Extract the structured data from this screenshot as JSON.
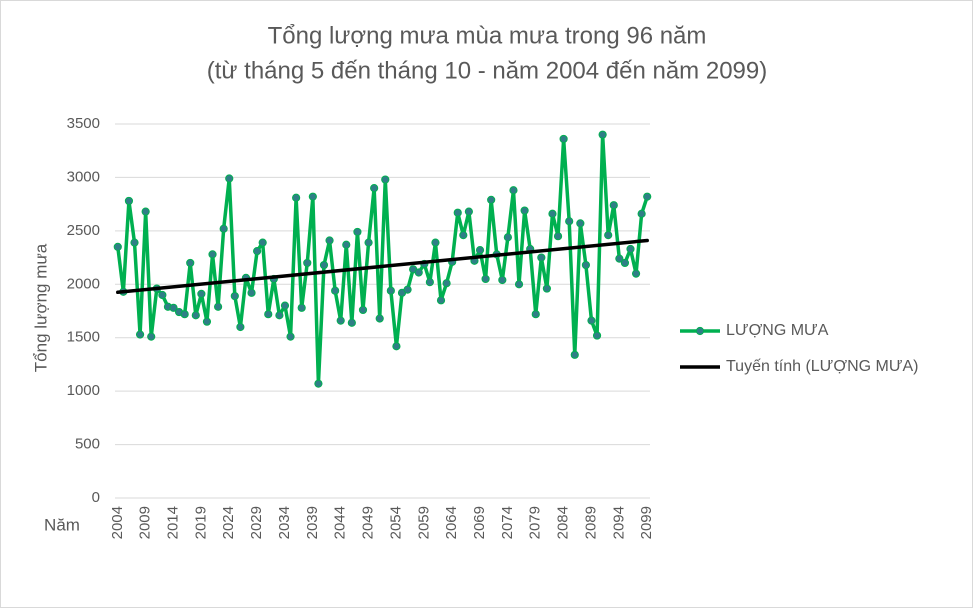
{
  "chart_data": {
    "type": "line",
    "title": "Tổng lượng mưa mùa mưa trong 96 năm",
    "subtitle": "(từ tháng 5 đến tháng 10 - năm 2004 đến năm 2099)",
    "y_label": "Tổng lượng mưa",
    "x_label": "Năm",
    "categories": [
      "2004",
      null,
      null,
      null,
      null,
      "2009",
      null,
      null,
      null,
      null,
      "2014",
      null,
      null,
      null,
      null,
      "2019",
      null,
      null,
      null,
      null,
      "2024",
      null,
      null,
      null,
      null,
      "2029",
      null,
      null,
      null,
      null,
      "2034",
      null,
      null,
      null,
      null,
      "2039",
      null,
      null,
      null,
      null,
      "2044",
      null,
      null,
      null,
      null,
      "2049",
      null,
      null,
      null,
      null,
      "2054",
      null,
      null,
      null,
      null,
      "2059",
      null,
      null,
      null,
      null,
      "2064",
      null,
      null,
      null,
      null,
      "2069",
      null,
      null,
      null,
      null,
      "2074",
      null,
      null,
      null,
      null,
      "2079",
      null,
      null,
      null,
      null,
      "2084",
      null,
      null,
      null,
      null,
      "2089",
      null,
      null,
      null,
      null,
      "2094",
      null,
      null,
      null,
      null,
      "2099"
    ],
    "series": [
      {
        "name": "LƯỢNG MƯA",
        "color": "#00b050",
        "marker_color": "#2f7f86",
        "values": [
          2350,
          1930,
          2780,
          2390,
          1530,
          2680,
          1510,
          1960,
          1900,
          1790,
          1780,
          1740,
          1720,
          2200,
          1710,
          1910,
          1650,
          2280,
          1790,
          2520,
          2990,
          1890,
          1600,
          2060,
          1920,
          2310,
          2390,
          1720,
          2050,
          1710,
          1800,
          1510,
          2810,
          1780,
          2200,
          2820,
          1070,
          2180,
          2410,
          1940,
          1660,
          2370,
          1640,
          2490,
          1760,
          2390,
          2900,
          1680,
          2980,
          1940,
          1420,
          1920,
          1950,
          2140,
          2110,
          2190,
          2020,
          2390,
          1850,
          2010,
          2210,
          2670,
          2460,
          2680,
          2220,
          2320,
          2050,
          2790,
          2280,
          2040,
          2440,
          2880,
          2000,
          2690,
          2330,
          1720,
          2250,
          1960,
          2660,
          2450,
          3360,
          2590,
          1340,
          2570,
          2180,
          1660,
          1520,
          3400,
          2460,
          2740,
          2240,
          2200,
          2330,
          2100,
          2660,
          2820
        ]
      }
    ],
    "trendline": {
      "name": "Tuyến tính (LƯỢNG MƯA)",
      "color": "#000000",
      "start": 1925,
      "end": 2410
    },
    "ylim": [
      0,
      3500
    ],
    "yticks": [
      0,
      500,
      1000,
      1500,
      2000,
      2500,
      3000,
      3500
    ],
    "grid": true,
    "legend": "right"
  }
}
